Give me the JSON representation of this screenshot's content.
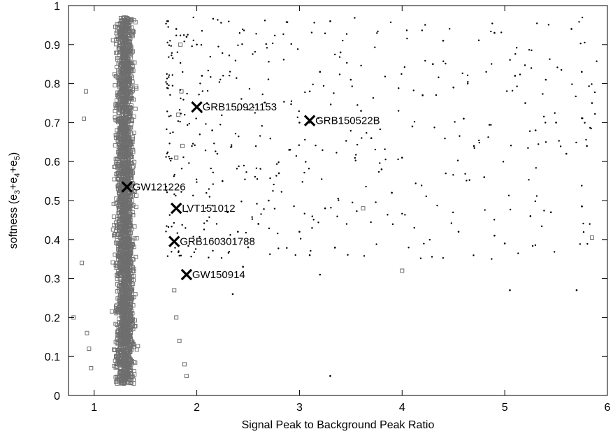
{
  "chart_data": {
    "type": "scatter",
    "title": "",
    "xlabel": "Signal Peak to Background Peak Ratio",
    "ylabel_main": "softness (e",
    "ylabel_parts": [
      "3",
      "+e",
      "4",
      "+e",
      "5",
      ")"
    ],
    "xlim": [
      0.75,
      6
    ],
    "ylim": [
      0,
      1
    ],
    "x_ticks": [
      1,
      2,
      3,
      4,
      5,
      6
    ],
    "y_ticks": [
      0,
      0.1,
      0.2,
      0.3,
      0.4,
      0.5,
      0.6,
      0.7,
      0.8,
      0.9,
      1
    ],
    "x_tick_labels": [
      "1",
      "2",
      "3",
      "4",
      "5",
      "6"
    ],
    "y_tick_labels": [
      "0",
      "0.1",
      "0.2",
      "0.3",
      "0.4",
      "0.5",
      "0.6",
      "0.7",
      "0.8",
      "0.9",
      "1"
    ],
    "grid": false,
    "legend": "none",
    "colors": {
      "background_series": "#6e6e6e",
      "event_series": "#000000",
      "annotation": "#000000"
    },
    "series": [
      {
        "marker": "open-square",
        "description_visible": false,
        "main_cluster": {
          "x_range": [
            0.95,
            1.72
          ],
          "y_range": [
            0.03,
            0.97
          ],
          "x_center": 1.3
        },
        "points": [
          [
            0.8,
            0.2
          ],
          [
            0.88,
            0.34
          ],
          [
            0.92,
            0.78
          ],
          [
            0.9,
            0.71
          ],
          [
            0.93,
            0.16
          ],
          [
            0.95,
            0.12
          ],
          [
            0.97,
            0.07
          ],
          [
            3.62,
            0.48
          ],
          [
            4.0,
            0.32
          ],
          [
            5.85,
            0.405
          ],
          [
            1.8,
            0.61
          ],
          [
            1.82,
            0.72
          ],
          [
            1.84,
            0.9
          ],
          [
            1.85,
            0.78
          ],
          [
            1.88,
            0.08
          ],
          [
            1.9,
            0.05
          ],
          [
            1.78,
            0.27
          ],
          [
            1.8,
            0.2
          ],
          [
            1.83,
            0.14
          ],
          [
            1.86,
            0.64
          ]
        ]
      },
      {
        "marker": "dot",
        "main_cluster": {
          "x_range": [
            1.7,
            5.9
          ],
          "y_range": [
            0.05,
            0.97
          ]
        },
        "points": [
          [
            1.72,
            0.96
          ],
          [
            1.8,
            0.94
          ],
          [
            1.9,
            0.92
          ],
          [
            2.0,
            0.9
          ],
          [
            2.05,
            0.82
          ],
          [
            2.1,
            0.75
          ],
          [
            2.15,
            0.68
          ],
          [
            2.2,
            0.62
          ],
          [
            2.25,
            0.55
          ],
          [
            2.3,
            0.47
          ],
          [
            2.4,
            0.42
          ],
          [
            2.5,
            0.38
          ],
          [
            2.6,
            0.44
          ],
          [
            2.7,
            0.5
          ],
          [
            2.8,
            0.57
          ],
          [
            2.9,
            0.63
          ],
          [
            3.0,
            0.7
          ],
          [
            3.1,
            0.78
          ],
          [
            3.2,
            0.83
          ],
          [
            3.3,
            0.96
          ],
          [
            3.4,
            0.88
          ],
          [
            3.5,
            0.81
          ],
          [
            3.6,
            0.73
          ],
          [
            3.7,
            0.66
          ],
          [
            3.8,
            0.58
          ],
          [
            3.9,
            0.52
          ],
          [
            4.0,
            0.61
          ],
          [
            4.1,
            0.69
          ],
          [
            4.2,
            0.77
          ],
          [
            4.3,
            0.85
          ],
          [
            4.4,
            0.91
          ],
          [
            4.5,
            0.79
          ],
          [
            4.6,
            0.71
          ],
          [
            4.7,
            0.64
          ],
          [
            4.8,
            0.56
          ],
          [
            4.9,
            0.93
          ],
          [
            5.0,
            0.39
          ],
          [
            5.05,
            0.27
          ],
          [
            5.1,
            0.82
          ],
          [
            5.2,
            0.75
          ],
          [
            5.3,
            0.68
          ],
          [
            5.4,
            0.81
          ],
          [
            5.5,
            0.7
          ],
          [
            5.6,
            0.62
          ],
          [
            5.65,
            0.94
          ],
          [
            5.7,
            0.27
          ],
          [
            5.75,
            0.83
          ],
          [
            5.8,
            0.64
          ],
          [
            5.85,
            0.75
          ],
          [
            3.1,
            0.36
          ],
          [
            3.2,
            0.31
          ],
          [
            3.3,
            0.05
          ],
          [
            4.55,
            0.42
          ],
          [
            4.9,
            0.41
          ],
          [
            5.45,
            0.47
          ],
          [
            5.25,
            0.46
          ],
          [
            2.35,
            0.26
          ],
          [
            2.45,
            0.33
          ],
          [
            3.0,
            0.42
          ],
          [
            3.25,
            0.48
          ]
        ]
      }
    ],
    "annotations": [
      {
        "label": "GRB150921153",
        "x": 2.0,
        "y": 0.74
      },
      {
        "label": "GRB150522B",
        "x": 3.1,
        "y": 0.705
      },
      {
        "label": "GW121226",
        "x": 1.32,
        "y": 0.535
      },
      {
        "label": "LVT151012",
        "x": 1.8,
        "y": 0.48
      },
      {
        "label": "GRB160301788",
        "x": 1.78,
        "y": 0.395
      },
      {
        "label": "GW150914",
        "x": 1.9,
        "y": 0.31
      }
    ]
  }
}
